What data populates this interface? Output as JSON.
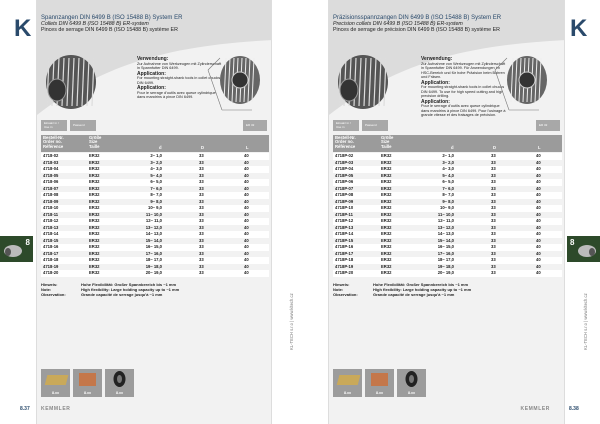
{
  "left": {
    "logo": "K",
    "title_de": "Spannzangen DIN 6499 B (ISO 15488 B) System ER",
    "title_en": "Collets DIN 6499 B (ISO 15488 B) ER-system",
    "title_fr": "Pinces de serrage DIN 6499 B (ISO 15488 B) système ER",
    "usage": [
      {
        "head": "Verwendung:",
        "text": "Zur Aufnahme von Werkzeugen mit Zylinderschaft in Spannfutter DIN 6499."
      },
      {
        "head": "Application:",
        "text": "For mounting straight-shank tools in collet chucks DIN 6499."
      },
      {
        "head": "Application:",
        "text": "Pour le serrage d'outils avec queue cylindrique dans mandrins à pince DIN 6499."
      }
    ],
    "tags": [
      "Einsatz in / Use in",
      "Passend"
    ],
    "tag_right": "ER 32",
    "headers": {
      "order": "Bestell-Nr.\nOrder no.\nRéférence",
      "size": "Größe\nSize\nTaille",
      "d": "d",
      "D": "D",
      "L": "L"
    },
    "rows": [
      [
        "4718-02",
        "ER32",
        "2– 1,0",
        "33",
        "40"
      ],
      [
        "4718-03",
        "ER32",
        "3– 2,0",
        "33",
        "40"
      ],
      [
        "4718-04",
        "ER32",
        "4– 3,0",
        "33",
        "40"
      ],
      [
        "4718-05",
        "ER32",
        "5– 4,0",
        "33",
        "40"
      ],
      [
        "4718-06",
        "ER32",
        "6– 5,0",
        "33",
        "40"
      ],
      [
        "4718-07",
        "ER32",
        "7– 6,0",
        "33",
        "40"
      ],
      [
        "4718-08",
        "ER32",
        "8– 7,0",
        "33",
        "40"
      ],
      [
        "4718-09",
        "ER32",
        "9– 8,0",
        "33",
        "40"
      ],
      [
        "4718-10",
        "ER32",
        "10– 9,0",
        "33",
        "40"
      ],
      [
        "4718-11",
        "ER32",
        "11– 10,0",
        "33",
        "40"
      ],
      [
        "4718-12",
        "ER32",
        "12– 11,0",
        "33",
        "40"
      ],
      [
        "4718-13",
        "ER32",
        "13– 12,0",
        "33",
        "40"
      ],
      [
        "4718-14",
        "ER32",
        "14– 13,0",
        "33",
        "40"
      ],
      [
        "4718-15",
        "ER32",
        "15– 14,0",
        "33",
        "40"
      ],
      [
        "4718-16",
        "ER32",
        "16– 15,0",
        "33",
        "40"
      ],
      [
        "4718-17",
        "ER32",
        "17– 16,0",
        "33",
        "40"
      ],
      [
        "4718-18",
        "ER32",
        "18– 17,0",
        "33",
        "40"
      ],
      [
        "4718-19",
        "ER32",
        "19– 18,0",
        "33",
        "40"
      ],
      [
        "4718-20",
        "ER32",
        "20– 19,0",
        "33",
        "40"
      ]
    ],
    "notes": [
      {
        "label": "Hinweis:",
        "text": "Hohe Flexibilität: Großer Spannbereich bis ~1 mm"
      },
      {
        "label": "Note:",
        "text": "High flexibility: Large holding capacity up to ~1 mm"
      },
      {
        "label": "Observation:",
        "text": "Grande capacité de serrage jusqu'à ~1 mm"
      }
    ],
    "thumbs": [
      "8.xx",
      "8.xx",
      "8.xx"
    ],
    "brand": "KEMMLER",
    "page": "8.37",
    "chapter": "8"
  },
  "right": {
    "logo": "K",
    "title_de": "Präzisionsspannzangen DIN 6499 B (ISO 15488 B) System ER",
    "title_en": "Precision collets DIN 6499 B (ISO 15488 B) ER-system",
    "title_fr": "Pinces de serrage de précision DIN 6499 B (ISO 15488 B) système ER",
    "usage": [
      {
        "head": "Verwendung:",
        "text": "Zur Aufnahme von Werkzeugen mit Zylinderschaft in Spannfutter DIN 6499. Für Anwendungen im HSC-Bereich und für hohe Präzision beim Bohren und Fräsen."
      },
      {
        "head": "Application:",
        "text": "For mounting straight-shank tools in collet chucks DIN 6499. To use for high speed cutting and high precision drilling."
      },
      {
        "head": "Application:",
        "text": "Pour le serrage d'outils avec queue cylindrique dans mandrins à pince DIN 6499. Pour l'usinage à grande vitesse et des fraisages de précision."
      }
    ],
    "tags": [
      "Einsatz in / Use in",
      "Passend"
    ],
    "tag_right": "ER 32",
    "headers": {
      "order": "Bestell-Nr.\nOrder no.\nRéférence",
      "size": "Größe\nSize\nTaille",
      "d": "d",
      "D": "D",
      "L": "L"
    },
    "rows": [
      [
        "4718P-02",
        "ER32",
        "2– 1,0",
        "33",
        "40"
      ],
      [
        "4718P-03",
        "ER32",
        "3– 2,0",
        "33",
        "40"
      ],
      [
        "4718P-04",
        "ER32",
        "4– 3,0",
        "33",
        "40"
      ],
      [
        "4718P-05",
        "ER32",
        "5– 4,0",
        "33",
        "40"
      ],
      [
        "4718P-06",
        "ER32",
        "6– 5,0",
        "33",
        "40"
      ],
      [
        "4718P-07",
        "ER32",
        "7– 6,0",
        "33",
        "40"
      ],
      [
        "4718P-08",
        "ER32",
        "8– 7,0",
        "33",
        "40"
      ],
      [
        "4718P-09",
        "ER32",
        "9– 8,0",
        "33",
        "40"
      ],
      [
        "4718P-10",
        "ER32",
        "10– 9,0",
        "33",
        "40"
      ],
      [
        "4718P-11",
        "ER32",
        "11– 10,0",
        "33",
        "40"
      ],
      [
        "4718P-12",
        "ER32",
        "12– 11,0",
        "33",
        "40"
      ],
      [
        "4718P-13",
        "ER32",
        "13– 12,0",
        "33",
        "40"
      ],
      [
        "4718P-14",
        "ER32",
        "14– 13,0",
        "33",
        "40"
      ],
      [
        "4718P-15",
        "ER32",
        "15– 14,0",
        "33",
        "40"
      ],
      [
        "4718P-16",
        "ER32",
        "16– 15,0",
        "33",
        "40"
      ],
      [
        "4718P-17",
        "ER32",
        "17– 16,0",
        "33",
        "40"
      ],
      [
        "4718P-18",
        "ER32",
        "18– 17,0",
        "33",
        "40"
      ],
      [
        "4718P-19",
        "ER32",
        "19– 18,0",
        "33",
        "40"
      ],
      [
        "4718P-20",
        "ER32",
        "20– 19,0",
        "33",
        "40"
      ]
    ],
    "notes": [
      {
        "label": "Hinweis:",
        "text": "Hohe Flexibilität: Großer Spannbereich bis ~1 mm"
      },
      {
        "label": "Note:",
        "text": "High flexibility: Large holding capacity up to ~1 mm"
      },
      {
        "label": "Observation:",
        "text": "Grande capacité de serrage jusqu'à ~1 mm"
      }
    ],
    "thumbs": [
      "8.xx",
      "8.xx",
      "8.xx"
    ],
    "brand": "KEMMLER",
    "page": "8.38",
    "chapter": "8"
  },
  "side_text": "KL-TECH s.r.o | www.kltech.cz",
  "colors": {
    "brand_navy": "#2a4a6b",
    "chapter_green": "#2d4a2a",
    "table_header": "#9b9b9b"
  }
}
